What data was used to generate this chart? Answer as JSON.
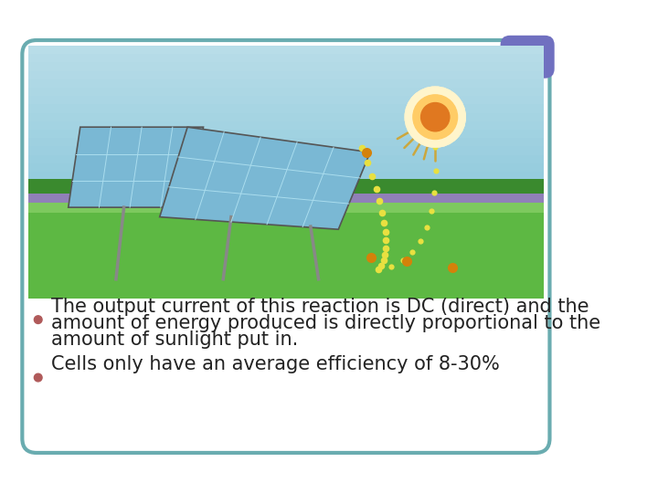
{
  "background_color": "#ffffff",
  "card_border_color": "#6aacb0",
  "card_bg_color": "#ffffff",
  "corner_accent_color": "#7070c0",
  "bullet_color": "#b05a5a",
  "bullet1_line1": "The output current of this reaction is DC (direct) and the",
  "bullet1_line2": "amount of energy produced is directly proportional to the",
  "bullet1_line3": "amount of sunlight put in.",
  "bullet2": "Cells only have an average efficiency of 8-30%",
  "text_color": "#222222",
  "font_size": 15,
  "sky_color_top": "#b8dde8",
  "sky_color_bot": "#72bcd4",
  "ground_color": "#5db843",
  "ground_light": "#7dc95e",
  "hill_color": "#9080b8",
  "tree_color": "#3a8a2e",
  "sun_glow": "#fff5cc",
  "sun_mid": "#ffcc66",
  "sun_core": "#e07820",
  "panel_color": "#7ab8d4",
  "panel_edge": "#555555",
  "panel_grid": "#aaddee",
  "dot_yellow": "#e8e040",
  "dot_orange": "#d4820a",
  "ray_color": "#d4a020"
}
